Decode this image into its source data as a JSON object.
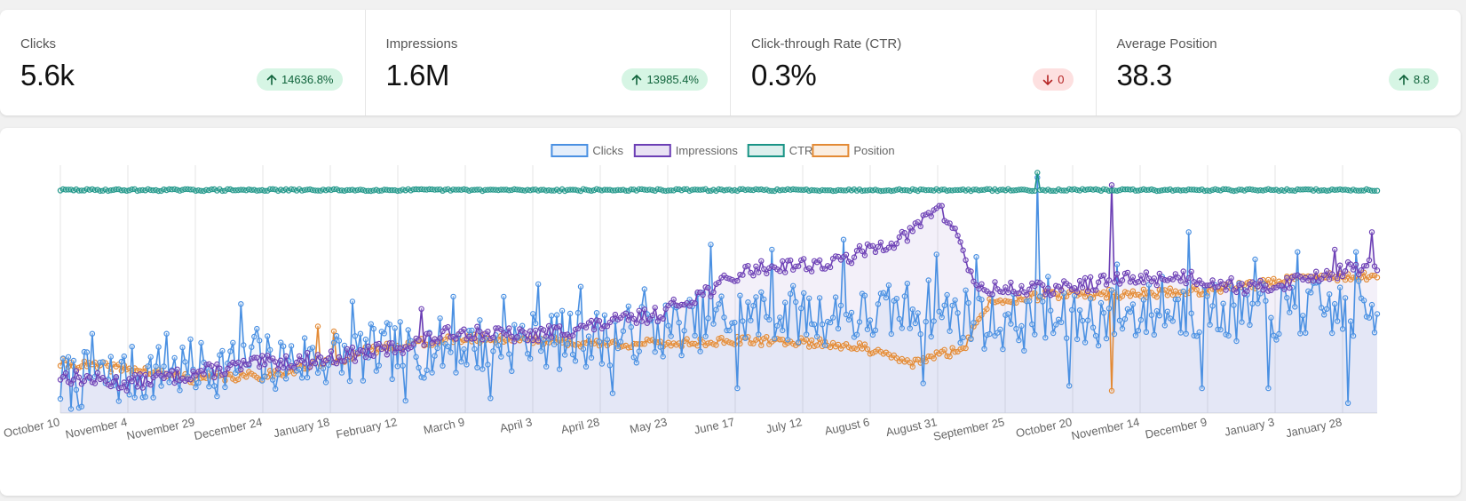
{
  "stats": [
    {
      "label": "Clicks",
      "value": "5.6k",
      "change": "14636.8%",
      "direction": "up"
    },
    {
      "label": "Impressions",
      "value": "1.6M",
      "change": "13985.4%",
      "direction": "up"
    },
    {
      "label": "Click-through Rate (CTR)",
      "value": "0.3%",
      "change": "0",
      "direction": "down"
    },
    {
      "label": "Average Position",
      "value": "38.3",
      "change": "8.8",
      "direction": "up"
    }
  ],
  "colors": {
    "clicks": "#4a90e2",
    "impressions": "#6c3fb5",
    "ctr": "#1a9486",
    "position": "#e38a35",
    "badge_up_bg": "#d6f5e4",
    "badge_down_bg": "#fde0e0"
  },
  "chart_data": {
    "type": "line",
    "legend_position": "top",
    "grid": true,
    "series": [
      {
        "name": "Clicks"
      },
      {
        "name": "Impressions"
      },
      {
        "name": "CTR"
      },
      {
        "name": "Position"
      }
    ],
    "x_tick_labels": [
      "October 10",
      "November 4",
      "November 29",
      "December 24",
      "January 18",
      "February 12",
      "March 9",
      "April 3",
      "April 28",
      "May 23",
      "June 17",
      "July 12",
      "August 6",
      "August 31",
      "September 25",
      "October 20",
      "November 14",
      "December 9",
      "January 3",
      "January 28"
    ],
    "anchors": {
      "Clicks": [
        [
          0,
          0.12
        ],
        [
          25,
          0.15
        ],
        [
          50,
          0.18
        ],
        [
          75,
          0.2
        ],
        [
          100,
          0.22
        ],
        [
          125,
          0.25
        ],
        [
          150,
          0.27
        ],
        [
          175,
          0.29
        ],
        [
          200,
          0.3
        ],
        [
          225,
          0.33
        ],
        [
          250,
          0.39
        ],
        [
          275,
          0.4
        ],
        [
          300,
          0.38
        ],
        [
          325,
          0.43
        ],
        [
          350,
          0.37
        ],
        [
          375,
          0.36
        ],
        [
          400,
          0.4
        ],
        [
          425,
          0.42
        ],
        [
          450,
          0.4
        ],
        [
          475,
          0.42
        ],
        [
          496,
          0.41
        ]
      ],
      "Impressions": [
        [
          0,
          0.15
        ],
        [
          25,
          0.12
        ],
        [
          50,
          0.16
        ],
        [
          75,
          0.2
        ],
        [
          100,
          0.22
        ],
        [
          125,
          0.26
        ],
        [
          140,
          0.3
        ],
        [
          150,
          0.33
        ],
        [
          175,
          0.31
        ],
        [
          200,
          0.35
        ],
        [
          225,
          0.4
        ],
        [
          245,
          0.5
        ],
        [
          260,
          0.58
        ],
        [
          275,
          0.6
        ],
        [
          290,
          0.6
        ],
        [
          305,
          0.66
        ],
        [
          320,
          0.72
        ],
        [
          330,
          0.84
        ],
        [
          338,
          0.72
        ],
        [
          345,
          0.5
        ],
        [
          375,
          0.5
        ],
        [
          400,
          0.54
        ],
        [
          425,
          0.55
        ],
        [
          450,
          0.5
        ],
        [
          475,
          0.56
        ],
        [
          496,
          0.6
        ]
      ],
      "CTR": [
        [
          0,
          0.9
        ],
        [
          496,
          0.9
        ]
      ],
      "Position": [
        [
          0,
          0.2
        ],
        [
          25,
          0.18
        ],
        [
          50,
          0.14
        ],
        [
          75,
          0.15
        ],
        [
          100,
          0.2
        ],
        [
          115,
          0.25
        ],
        [
          125,
          0.27
        ],
        [
          150,
          0.3
        ],
        [
          175,
          0.3
        ],
        [
          200,
          0.28
        ],
        [
          225,
          0.28
        ],
        [
          250,
          0.29
        ],
        [
          275,
          0.29
        ],
        [
          300,
          0.27
        ],
        [
          320,
          0.2
        ],
        [
          340,
          0.26
        ],
        [
          350,
          0.45
        ],
        [
          375,
          0.48
        ],
        [
          400,
          0.48
        ],
        [
          425,
          0.49
        ],
        [
          450,
          0.52
        ],
        [
          475,
          0.55
        ],
        [
          496,
          0.55
        ]
      ]
    },
    "spikes": {
      "Clicks": [
        [
          12,
          0.32
        ],
        [
          40,
          0.32
        ],
        [
          68,
          0.44
        ],
        [
          74,
          0.34
        ],
        [
          110,
          0.45
        ],
        [
          148,
          0.47
        ],
        [
          167,
          0.47
        ],
        [
          180,
          0.52
        ],
        [
          196,
          0.51
        ],
        [
          220,
          0.5
        ],
        [
          245,
          0.68
        ],
        [
          268,
          0.66
        ],
        [
          295,
          0.7
        ],
        [
          330,
          0.64
        ],
        [
          345,
          0.63
        ],
        [
          368,
          0.95
        ],
        [
          372,
          0.55
        ],
        [
          398,
          0.6
        ],
        [
          415,
          0.55
        ],
        [
          425,
          0.73
        ],
        [
          450,
          0.62
        ],
        [
          466,
          0.65
        ],
        [
          488,
          0.65
        ],
        [
          485,
          0.04
        ],
        [
          130,
          0.05
        ],
        [
          162,
          0.06
        ],
        [
          208,
          0.08
        ],
        [
          255,
          0.1
        ],
        [
          325,
          0.12
        ],
        [
          380,
          0.11
        ],
        [
          430,
          0.1
        ],
        [
          455,
          0.1
        ]
      ],
      "Impressions": [
        [
          136,
          0.42
        ],
        [
          396,
          0.92
        ],
        [
          480,
          0.66
        ],
        [
          494,
          0.73
        ]
      ],
      "CTR": [
        [
          368,
          0.97
        ]
      ],
      "Position": [
        [
          396,
          0.09
        ],
        [
          97,
          0.35
        ],
        [
          103,
          0.33
        ]
      ]
    },
    "noise": {
      "Clicks": 0.12,
      "Impressions": 0.03,
      "CTR": 0.004,
      "Position": 0.018
    }
  }
}
